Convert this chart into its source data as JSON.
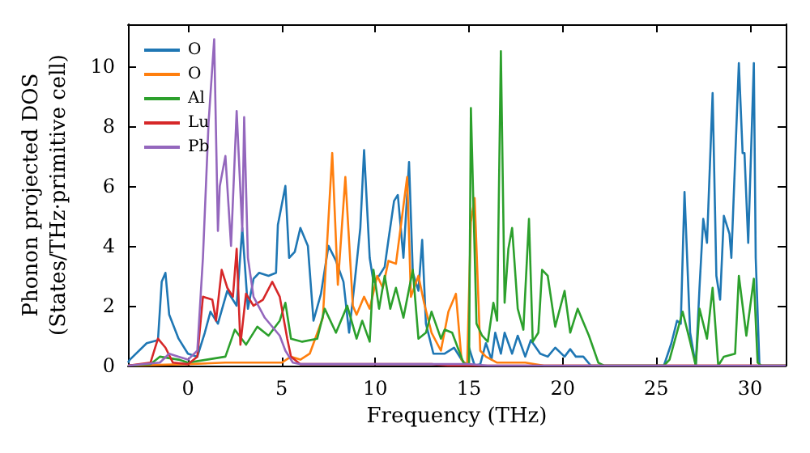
{
  "chart_data": {
    "type": "line",
    "xlabel": "Frequency (THz)",
    "ylabel": "Phonon projected DOS\n(States/THz·primitive cell)",
    "xlim": [
      -3.2,
      31.9
    ],
    "xticks": [
      0,
      5,
      10,
      15,
      20,
      25,
      30
    ],
    "ylim": [
      0,
      11.4
    ],
    "yticks": [
      0,
      2,
      4,
      6,
      8,
      10
    ],
    "grid": false,
    "legend": "top left",
    "marker": "none",
    "line_style": "solid",
    "series": [
      {
        "name": "O",
        "color": "#1f77b4",
        "x": [
          -3.2,
          -3.1,
          -2.2,
          -1.6,
          -1.4,
          -1.2,
          -1.0,
          -0.5,
          0,
          0.5,
          0.9,
          1.2,
          1.6,
          2.1,
          2.6,
          2.9,
          3.2,
          3.5,
          3.8,
          4.3,
          4.7,
          4.8,
          5.2,
          5.4,
          5.7,
          6.0,
          6.4,
          6.7,
          7.1,
          7.5,
          7.9,
          8.3,
          8.6,
          8.9,
          9.2,
          9.4,
          9.7,
          9.9,
          10.2,
          10.5,
          10.7,
          11.0,
          11.2,
          11.5,
          11.8,
          12.0,
          12.3,
          12.5,
          12.7,
          13.1,
          13.7,
          14.2,
          14.6,
          14.9,
          15.0,
          15.3,
          15.6,
          15.9,
          16.2,
          16.4,
          16.7,
          16.9,
          17.3,
          17.6,
          18.0,
          18.3,
          18.8,
          19.2,
          19.6,
          20.1,
          20.4,
          20.7,
          21.1,
          21.5,
          25.4,
          25.8,
          26.1,
          26.3,
          26.5,
          26.8,
          27.1,
          27.3,
          27.5,
          27.7,
          28.0,
          28.2,
          28.4,
          28.6,
          28.9,
          29.0,
          29.4,
          29.6,
          29.7,
          29.9,
          30.2,
          30.3,
          30.5,
          31.9
        ],
        "values": [
          0.1,
          0.2,
          0.75,
          0.85,
          2.8,
          3.1,
          1.7,
          0.9,
          0.4,
          0.3,
          1.1,
          1.8,
          1.4,
          2.5,
          2.0,
          4.6,
          1.9,
          2.9,
          3.1,
          3.0,
          3.1,
          4.7,
          6.0,
          3.6,
          3.8,
          4.6,
          4.0,
          1.5,
          2.4,
          4.0,
          3.5,
          2.8,
          1.1,
          2.8,
          4.6,
          7.2,
          3.6,
          2.8,
          3.0,
          3.3,
          4.2,
          5.5,
          5.7,
          3.6,
          6.8,
          3.1,
          2.5,
          4.2,
          1.4,
          0.4,
          0.4,
          0.6,
          0.2,
          0,
          0.6,
          0,
          0.05,
          0.75,
          0.2,
          1.1,
          0.4,
          1.1,
          0.4,
          1.0,
          0.3,
          0.85,
          0.4,
          0.3,
          0.6,
          0.3,
          0.55,
          0.3,
          0.3,
          0,
          0,
          0.75,
          1.5,
          1.4,
          5.8,
          1.1,
          0,
          2.6,
          4.9,
          4.1,
          9.1,
          3.0,
          2.2,
          5.0,
          4.4,
          3.6,
          10.1,
          7.1,
          7.1,
          4.1,
          10.1,
          3.6,
          0,
          0
        ]
      },
      {
        "name": "O",
        "color": "#ff7f0e",
        "x": [
          -3.2,
          0,
          2,
          5,
          5.5,
          6,
          6.5,
          7.2,
          7.7,
          8.0,
          8.4,
          8.8,
          9.0,
          9.4,
          9.7,
          10.1,
          10.4,
          10.7,
          11.1,
          11.7,
          11.9,
          12.3,
          12.6,
          13.0,
          13.5,
          13.9,
          14.3,
          14.6,
          14.9,
          15.1,
          15.3,
          15.6,
          15.9,
          16.5,
          18,
          19,
          31.9
        ],
        "values": [
          0,
          0.05,
          0.1,
          0.1,
          0.3,
          0.2,
          0.4,
          1.6,
          7.1,
          2.7,
          6.3,
          2.0,
          1.7,
          2.3,
          1.9,
          3.0,
          2.6,
          3.5,
          3.4,
          6.3,
          2.3,
          3.0,
          2.1,
          1.1,
          0.5,
          1.8,
          2.4,
          0.2,
          0,
          4.8,
          5.6,
          0.5,
          0.3,
          0.1,
          0.1,
          0,
          0
        ]
      },
      {
        "name": "Al",
        "color": "#2ca02c",
        "x": [
          -3.2,
          -2,
          -1.5,
          -0.5,
          0,
          1,
          2,
          2.5,
          3.1,
          3.7,
          4.3,
          4.9,
          5.2,
          5.5,
          6.1,
          6.9,
          7.3,
          7.9,
          8.5,
          9.0,
          9.3,
          9.7,
          9.9,
          10.2,
          10.5,
          10.8,
          11.1,
          11.5,
          12.0,
          12.3,
          12.7,
          13.0,
          13.5,
          13.7,
          14.1,
          14.7,
          15.0,
          15.1,
          15.4,
          15.7,
          16.0,
          16.3,
          16.5,
          16.7,
          16.9,
          17.1,
          17.3,
          17.6,
          17.9,
          18.2,
          18.4,
          18.7,
          18.9,
          19.2,
          19.6,
          20.1,
          20.4,
          20.8,
          21.4,
          21.9,
          22.2,
          25.4,
          25.7,
          26.4,
          26.8,
          27.1,
          27.3,
          27.7,
          28.0,
          28.3,
          28.6,
          29.2,
          29.4,
          29.8,
          30.2,
          30.4,
          30.6,
          31.9
        ],
        "values": [
          0,
          0.05,
          0.3,
          0.2,
          0.1,
          0.2,
          0.3,
          1.2,
          0.7,
          1.3,
          1.0,
          1.5,
          2.1,
          0.9,
          0.8,
          0.9,
          1.9,
          1.1,
          2.0,
          0.9,
          1.5,
          0.8,
          3.2,
          1.9,
          3.0,
          1.9,
          2.6,
          1.6,
          3.2,
          0.9,
          1.1,
          1.8,
          0.9,
          1.2,
          1.1,
          0.1,
          0,
          8.6,
          1.4,
          1.0,
          0.8,
          2.1,
          1.5,
          10.5,
          2.1,
          3.9,
          4.6,
          1.9,
          1.2,
          4.9,
          0.8,
          1.1,
          3.2,
          3.0,
          1.3,
          2.5,
          1.1,
          1.9,
          1.0,
          0.1,
          0,
          0,
          0.2,
          1.8,
          0.8,
          0,
          1.9,
          0.9,
          2.6,
          0,
          0.3,
          0.4,
          3.0,
          1.0,
          2.9,
          0.1,
          0,
          0
        ]
      },
      {
        "name": "Lu",
        "color": "#d62728",
        "x": [
          -3.2,
          -2,
          -1.6,
          -1.2,
          -0.8,
          0,
          0.5,
          0.8,
          1.3,
          1.5,
          1.8,
          2.1,
          2.4,
          2.6,
          2.8,
          3.1,
          3.5,
          4.0,
          4.5,
          4.9,
          5.3,
          5.5,
          6,
          13,
          14,
          31.9
        ],
        "values": [
          0,
          0.1,
          0.9,
          0.6,
          0.1,
          0.05,
          0.3,
          2.3,
          2.2,
          1.5,
          3.2,
          2.6,
          2.3,
          3.9,
          0.7,
          2.4,
          2.0,
          2.2,
          2.8,
          2.3,
          0.9,
          0.3,
          0.05,
          0.05,
          0,
          0
        ]
      },
      {
        "name": "Pb",
        "color": "#9467bd",
        "x": [
          -3.2,
          -1.5,
          -1,
          -0.5,
          0,
          0.5,
          0.8,
          1.1,
          1.4,
          1.6,
          1.7,
          2.0,
          2.3,
          2.6,
          2.9,
          3.0,
          3.2,
          3.5,
          4.1,
          4.9,
          5.2,
          5.6,
          6,
          10,
          15,
          16,
          31.9
        ],
        "values": [
          0,
          0.1,
          0.4,
          0.3,
          0.2,
          0.5,
          3.6,
          8.1,
          10.9,
          4.5,
          6.0,
          7.0,
          4.0,
          8.5,
          4.5,
          8.3,
          3.6,
          2.3,
          1.6,
          1.0,
          0.5,
          0.1,
          0.05,
          0.05,
          0.05,
          0,
          0
        ]
      }
    ]
  }
}
